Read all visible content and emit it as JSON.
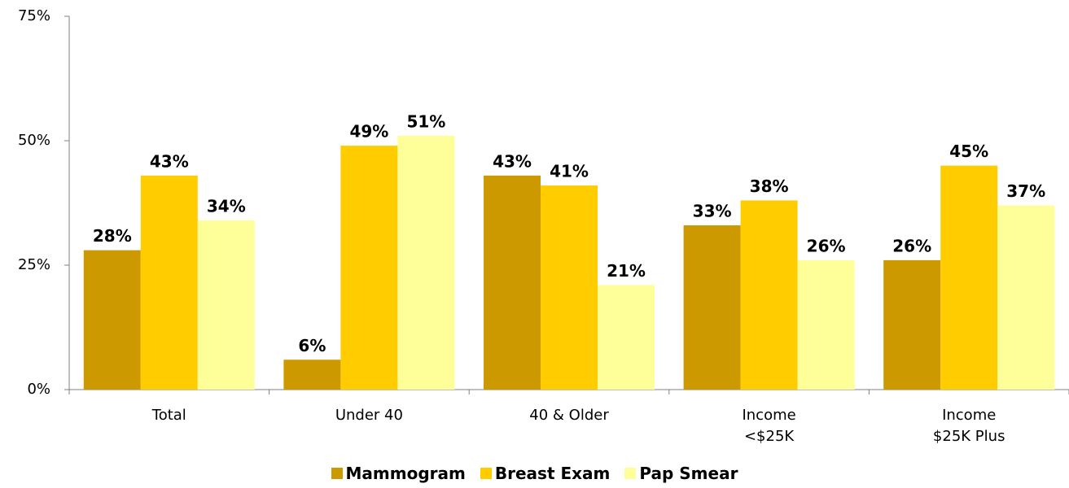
{
  "chart_data": {
    "type": "bar",
    "categories": [
      "Total",
      "Under 40",
      "40 & Older",
      "Income\n<$25K",
      "Income\n$25K Plus"
    ],
    "series": [
      {
        "name": "Mammogram",
        "color": "#cc9900",
        "values": [
          28,
          6,
          43,
          33,
          26
        ],
        "value_labels": [
          "28%",
          "6%",
          "43%",
          "33%",
          "26%"
        ]
      },
      {
        "name": "Breast Exam",
        "color": "#ffcc00",
        "values": [
          43,
          49,
          41,
          38,
          45
        ],
        "value_labels": [
          "43%",
          "49%",
          "41%",
          "38%",
          "45%"
        ]
      },
      {
        "name": "Pap Smear",
        "color": "#ffff99",
        "values": [
          34,
          51,
          21,
          26,
          37
        ],
        "value_labels": [
          "34%",
          "51%",
          "21%",
          "26%",
          "37%"
        ]
      }
    ],
    "ylim": [
      0,
      75
    ],
    "yticks": [
      {
        "value": 0,
        "label": "0%"
      },
      {
        "value": 25,
        "label": "25%"
      },
      {
        "value": 50,
        "label": "50%"
      },
      {
        "value": 75,
        "label": "75%"
      }
    ],
    "grid": false,
    "legend": "bottom"
  }
}
